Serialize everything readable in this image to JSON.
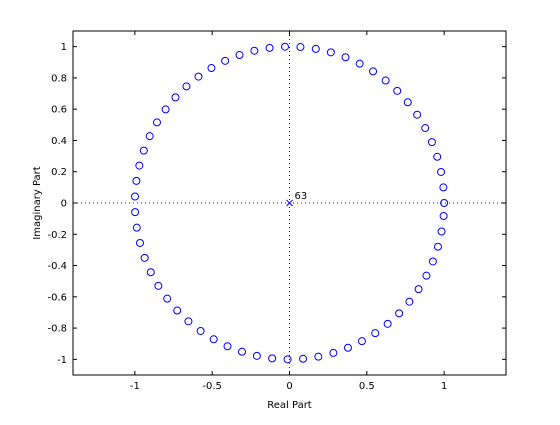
{
  "chart_data": {
    "type": "scatter",
    "title": "",
    "xlabel": "Real Part",
    "ylabel": "Imaginary Part",
    "xlim": [
      -1.4,
      1.4
    ],
    "ylim": [
      -1.1,
      1.1
    ],
    "xticks": [
      -1,
      -0.5,
      0,
      0.5,
      1
    ],
    "xtick_labels": [
      "-1",
      "-0.5",
      "0",
      "0.5",
      "1"
    ],
    "yticks": [
      -1,
      -0.8,
      -0.6,
      -0.4,
      -0.2,
      0,
      0.2,
      0.4,
      0.6,
      0.8,
      1
    ],
    "ytick_labels": [
      "-1",
      "-0.8",
      "-0.6",
      "-0.4",
      "-0.2",
      "0",
      "0.2",
      "0.4",
      "0.6",
      "0.8",
      "1"
    ],
    "grid": false,
    "reference_lines": [
      {
        "orientation": "horizontal",
        "value": 0,
        "style": "dotted"
      },
      {
        "orientation": "vertical",
        "value": 0,
        "style": "dotted"
      }
    ],
    "series": [
      {
        "marker": "circle",
        "color": "#0000ff",
        "points": [
          [
            1.0,
            0.0
          ],
          [
            0.995,
            0.0997
          ],
          [
            0.9801,
            0.1985
          ],
          [
            0.9553,
            0.2956
          ],
          [
            0.9211,
            0.3894
          ],
          [
            0.8776,
            0.4794
          ],
          [
            0.8253,
            0.5646
          ],
          [
            0.7648,
            0.6442
          ],
          [
            0.6967,
            0.7174
          ],
          [
            0.6216,
            0.7833
          ],
          [
            0.5403,
            0.8415
          ],
          [
            0.4536,
            0.8912
          ],
          [
            0.3624,
            0.932
          ],
          [
            0.2675,
            0.9636
          ],
          [
            0.17,
            0.9854
          ],
          [
            0.0707,
            0.9975
          ],
          [
            -0.0292,
            0.9996
          ],
          [
            -0.1288,
            0.9917
          ],
          [
            -0.2272,
            0.9738
          ],
          [
            -0.3233,
            0.9463
          ],
          [
            -0.4161,
            0.9093
          ],
          [
            -0.5048,
            0.8632
          ],
          [
            -0.5885,
            0.8085
          ],
          [
            -0.6663,
            0.7457
          ],
          [
            -0.7374,
            0.6755
          ],
          [
            -0.8011,
            0.5985
          ],
          [
            -0.8569,
            0.5155
          ],
          [
            -0.904,
            0.4274
          ],
          [
            -0.9422,
            0.335
          ],
          [
            -0.971,
            0.2392
          ],
          [
            -0.99,
            0.1411
          ],
          [
            -0.9991,
            0.0416
          ],
          [
            -0.9983,
            -0.0584
          ],
          [
            -0.9875,
            -0.1577
          ],
          [
            -0.9668,
            -0.2555
          ],
          [
            -0.9365,
            -0.3508
          ],
          [
            -0.8968,
            -0.4425
          ],
          [
            -0.8481,
            -0.5298
          ],
          [
            -0.791,
            -0.6119
          ],
          [
            -0.7259,
            -0.6878
          ],
          [
            -0.6536,
            -0.7568
          ],
          [
            -0.5748,
            -0.8183
          ],
          [
            -0.4903,
            -0.8716
          ],
          [
            -0.4008,
            -0.9162
          ],
          [
            -0.3073,
            -0.9516
          ],
          [
            -0.2108,
            -0.9775
          ],
          [
            -0.1122,
            -0.9937
          ],
          [
            -0.0124,
            -0.9999
          ],
          [
            0.0875,
            -0.9962
          ],
          [
            0.1865,
            -0.9825
          ],
          [
            0.2837,
            -0.9589
          ],
          [
            0.378,
            -0.9258
          ],
          [
            0.4685,
            -0.8835
          ],
          [
            0.5544,
            -0.8323
          ],
          [
            0.6347,
            -0.7728
          ],
          [
            0.7087,
            -0.7055
          ],
          [
            0.7756,
            -0.6313
          ],
          [
            0.8347,
            -0.5507
          ],
          [
            0.8855,
            -0.4646
          ],
          [
            0.9275,
            -0.3739
          ],
          [
            0.9602,
            -0.2794
          ],
          [
            0.9833,
            -0.1822
          ],
          [
            0.9965,
            -0.0831
          ]
        ]
      },
      {
        "marker": "x",
        "color": "#0000ff",
        "points": [
          [
            0,
            0
          ]
        ],
        "annotation": "63"
      }
    ]
  }
}
